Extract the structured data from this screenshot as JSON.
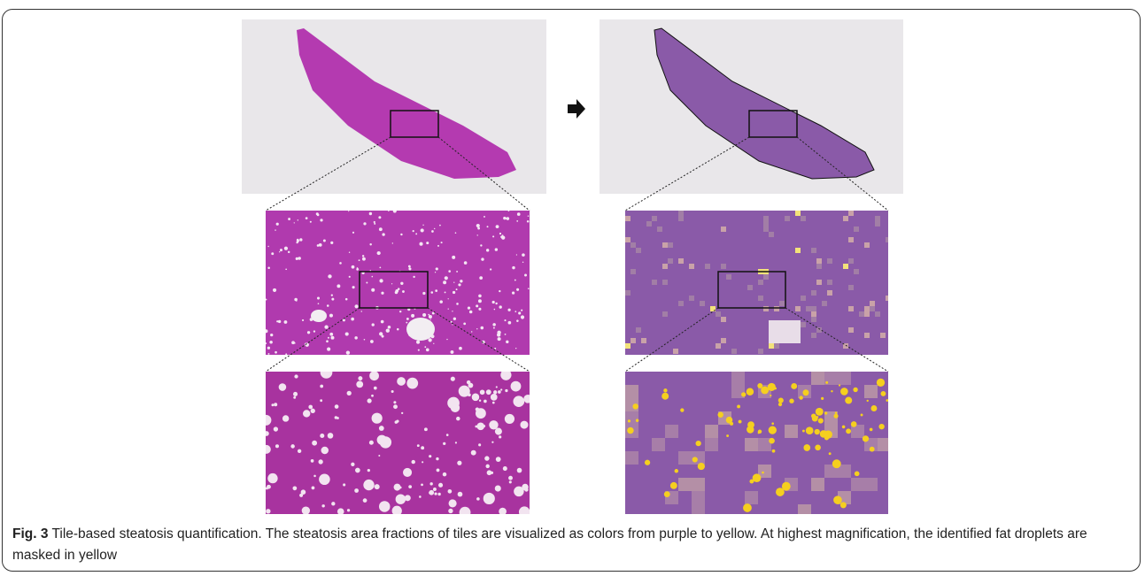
{
  "figure": {
    "label": "Fig. 3",
    "caption": "Tile-based steatosis quantification. The steatosis area fractions of tiles are visualized as colors from purple to yellow. At highest magnification, the identified fat droplets are masked in yellow"
  }
}
